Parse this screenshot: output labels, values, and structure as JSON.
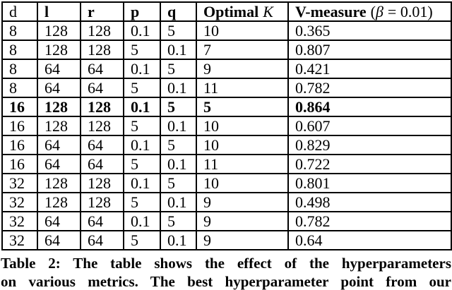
{
  "table": {
    "header": {
      "d": "d",
      "l": "l",
      "r": "r",
      "p": "p",
      "q": "q",
      "optimal_label": "Optimal",
      "optimal_k": "K",
      "vmeasure_label": "V-measure",
      "vmeasure_open": "(",
      "vmeasure_beta": "β",
      "vmeasure_close": "= 0.01)"
    },
    "rows": [
      [
        "8",
        "128",
        "128",
        "0.1",
        "5",
        "10",
        "0.365"
      ],
      [
        "8",
        "128",
        "128",
        "5",
        "0.1",
        "7",
        "0.807"
      ],
      [
        "8",
        "64",
        "64",
        "0.1",
        "5",
        "9",
        "0.421"
      ],
      [
        "8",
        "64",
        "64",
        "5",
        "0.1",
        "11",
        "0.782"
      ],
      [
        "16",
        "128",
        "128",
        "0.1",
        "5",
        "5",
        "0.864"
      ],
      [
        "16",
        "128",
        "128",
        "5",
        "0.1",
        "10",
        "0.607"
      ],
      [
        "16",
        "64",
        "64",
        "0.1",
        "5",
        "10",
        "0.829"
      ],
      [
        "16",
        "64",
        "64",
        "5",
        "0.1",
        "11",
        "0.722"
      ],
      [
        "32",
        "128",
        "128",
        "0.1",
        "5",
        "10",
        "0.801"
      ],
      [
        "32",
        "128",
        "128",
        "5",
        "0.1",
        "9",
        "0.498"
      ],
      [
        "32",
        "64",
        "64",
        "0.1",
        "5",
        "9",
        "0.782"
      ],
      [
        "32",
        "64",
        "64",
        "5",
        "0.1",
        "9",
        "0.64"
      ]
    ],
    "best_row_index": 4
  },
  "caption": {
    "line1": "Table 2: The table shows the effect of the hyperparameters",
    "line2": "on various metrics. The best hyperparameter point from our"
  },
  "colors": {
    "text": "#000000",
    "border": "#000000",
    "background": "#ffffff"
  }
}
